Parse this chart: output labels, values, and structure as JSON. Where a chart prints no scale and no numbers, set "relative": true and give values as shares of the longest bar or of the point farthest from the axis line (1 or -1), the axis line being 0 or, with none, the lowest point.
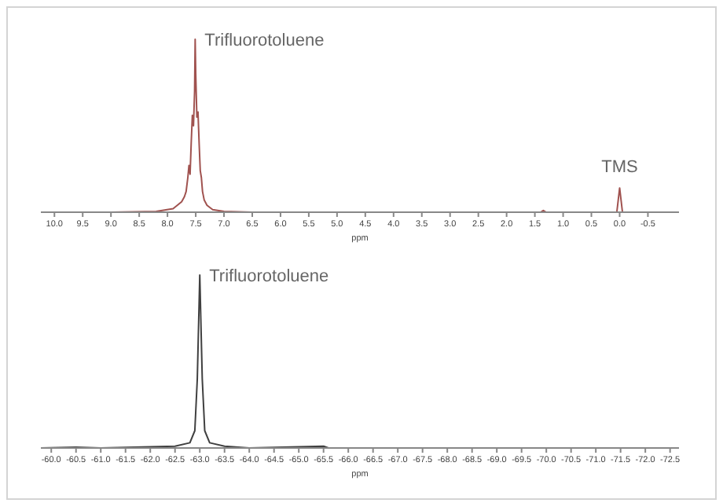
{
  "chart_data": [
    {
      "type": "line",
      "relative": true,
      "xlabel": "ppm",
      "xlim": [
        10.24,
        -1.05
      ],
      "xticks": [
        {
          "value": 10,
          "label": "10.0"
        },
        9.5,
        {
          "value": 9,
          "label": "9.0"
        },
        8.5,
        {
          "value": 8,
          "label": "8.0"
        },
        7.5,
        {
          "value": 7,
          "label": "7.0"
        },
        6.5,
        {
          "value": 6,
          "label": "6.0"
        },
        5.5,
        {
          "value": 5,
          "label": "5.0"
        },
        4.5,
        {
          "value": 4,
          "label": "4.0"
        },
        3.5,
        {
          "value": 3,
          "label": "3.0"
        },
        2.5,
        {
          "value": 2,
          "label": "2.0"
        },
        1.5,
        {
          "value": 1,
          "label": "1.0"
        },
        0.5,
        {
          "value": 0,
          "label": "0.0"
        },
        -0.5
      ],
      "x": [
        10.24,
        9,
        8.2,
        7.9,
        7.75,
        7.7,
        7.67,
        7.64,
        7.62,
        7.6,
        7.58,
        7.56,
        7.54,
        7.52,
        7.51,
        7.5,
        7.48,
        7.46,
        7.44,
        7.42,
        7.4,
        7.38,
        7.35,
        7.3,
        7.2,
        7,
        6.5,
        1.4,
        1.35,
        1.3,
        0.05,
        0,
        -0.05,
        -1.05
      ],
      "series": [
        {
          "color": "#a0524f",
          "values": [
            0,
            0,
            0.005,
            0.02,
            0.06,
            0.09,
            0.12,
            0.2,
            0.27,
            0.22,
            0.4,
            0.56,
            0.5,
            0.7,
            1,
            0.8,
            0.55,
            0.58,
            0.4,
            0.24,
            0.2,
            0.12,
            0.07,
            0.04,
            0.015,
            0.005,
            0,
            0,
            0.01,
            0,
            0,
            0.14,
            0,
            0
          ]
        }
      ],
      "annotations": [
        {
          "text": "Trifluorotoluene",
          "x": 7.51,
          "y": 1
        },
        {
          "text": "TMS",
          "x": 0,
          "y": 0.14
        }
      ]
    },
    {
      "type": "line",
      "relative": true,
      "xlabel": "ppm",
      "xlim": [
        -59.79,
        -72.68
      ],
      "xticks": [
        {
          "value": -60,
          "label": "-60.0"
        },
        -60.5,
        {
          "value": -61,
          "label": "-61.0"
        },
        -61.5,
        {
          "value": -62,
          "label": "-62.0"
        },
        -62.5,
        {
          "value": -63,
          "label": "-63.0"
        },
        -63.5,
        {
          "value": -64,
          "label": "-64.0"
        },
        -64.5,
        {
          "value": -65,
          "label": "-65.0"
        },
        -65.5,
        {
          "value": -66,
          "label": "-66.0"
        },
        -66.5,
        {
          "value": -67,
          "label": "-67.0"
        },
        -67.5,
        {
          "value": -68,
          "label": "-68.0"
        },
        -68.5,
        {
          "value": -69,
          "label": "-69.0"
        },
        -69.5,
        {
          "value": -70,
          "label": "-70.0"
        },
        -70.5,
        {
          "value": -71,
          "label": "-71.0"
        },
        -71.5,
        {
          "value": -72,
          "label": "-72.0"
        },
        -72.5
      ],
      "x": [
        -59.79,
        -60.5,
        -61,
        -62.5,
        -62.8,
        -62.9,
        -62.95,
        -63,
        -63.05,
        -63.1,
        -63.2,
        -63.5,
        -64,
        -65.5,
        -65.6,
        -72.68
      ],
      "series": [
        {
          "color": "#404040",
          "values": [
            0,
            0.005,
            0,
            0.01,
            0.03,
            0.1,
            0.4,
            1,
            0.4,
            0.1,
            0.03,
            0.01,
            0,
            0.01,
            0,
            0
          ]
        }
      ],
      "annotations": [
        {
          "text": "Trifluorotoluene",
          "x": -63,
          "y": 1
        }
      ]
    }
  ]
}
